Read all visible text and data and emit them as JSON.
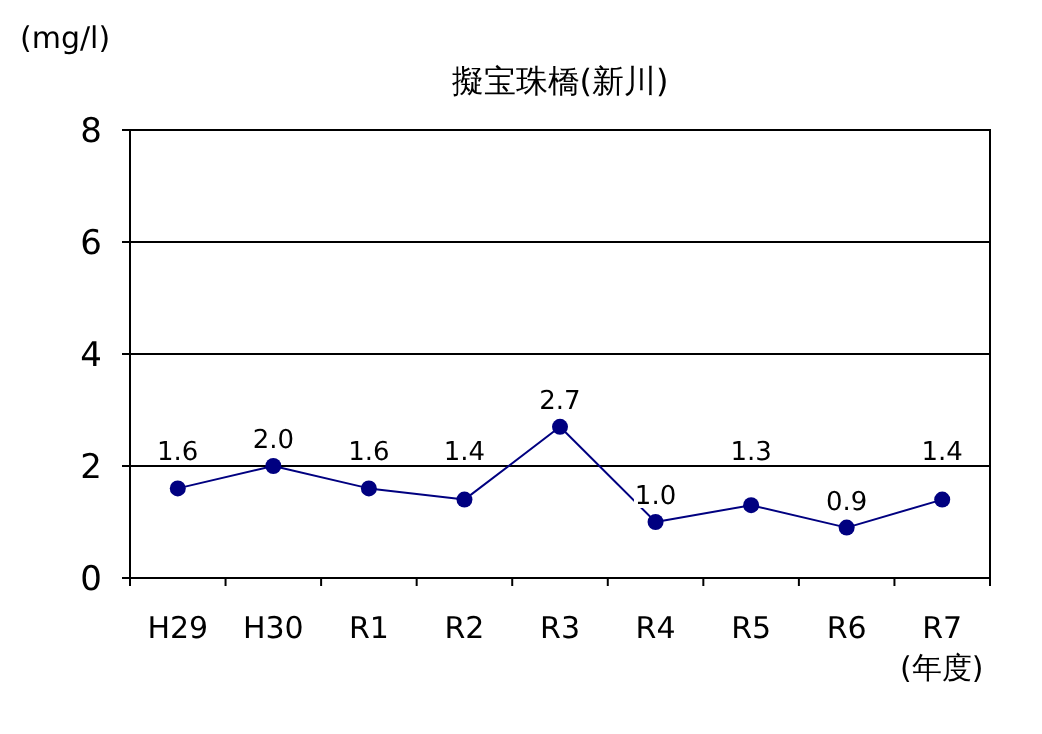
{
  "chart_data": {
    "type": "line",
    "title": "擬宝珠橋(新川)",
    "ylabel": "(mg/l)",
    "xlabel": "(年度)",
    "categories": [
      "H29",
      "H30",
      "R1",
      "R2",
      "R3",
      "R4",
      "R5",
      "R6",
      "R7"
    ],
    "series": [
      {
        "color": "#000080",
        "values": [
          1.6,
          2.0,
          1.6,
          1.4,
          2.7,
          1.0,
          1.3,
          0.9,
          1.4
        ],
        "value_labels": [
          "1.6",
          "2.0",
          "1.6",
          "1.4",
          "2.7",
          "1.0",
          "1.3",
          "0.9",
          "1.4"
        ]
      }
    ],
    "ylim": [
      0,
      8
    ],
    "yticks": [
      0,
      2,
      4,
      6,
      8
    ],
    "grid": "y",
    "marker": "circle",
    "line_style": "solid"
  }
}
